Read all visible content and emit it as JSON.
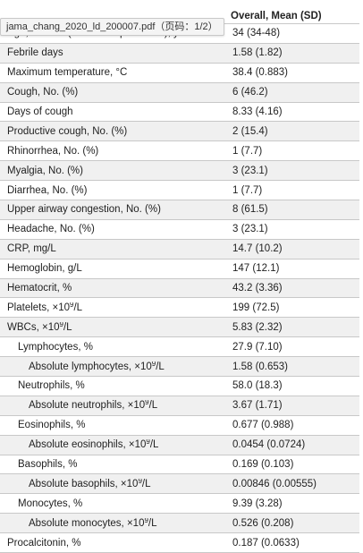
{
  "tooltip": "jama_chang_2020_ld_200007.pdf（页码：1/2）",
  "header": {
    "column": "Overall, Mean (SD)"
  },
  "rows": [
    {
      "label": "Age, median (25th–75th percentile), y",
      "value": "34 (34-48)",
      "indent": 0
    },
    {
      "label": "Febrile days",
      "value": "1.58 (1.82)",
      "indent": 0
    },
    {
      "label": "Maximum temperature, °C",
      "value": "38.4 (0.883)",
      "indent": 0
    },
    {
      "label": "Cough, No. (%)",
      "value": "6 (46.2)",
      "indent": 0
    },
    {
      "label": "Days of cough",
      "value": "8.33 (4.16)",
      "indent": 0
    },
    {
      "label": "Productive cough, No. (%)",
      "value": "2 (15.4)",
      "indent": 0
    },
    {
      "label": "Rhinorrhea, No. (%)",
      "value": "1 (7.7)",
      "indent": 0
    },
    {
      "label": "Myalgia, No. (%)",
      "value": "3 (23.1)",
      "indent": 0
    },
    {
      "label": "Diarrhea, No. (%)",
      "value": "1 (7.7)",
      "indent": 0
    },
    {
      "label": "Upper airway congestion, No. (%)",
      "value": "8 (61.5)",
      "indent": 0
    },
    {
      "label": "Headache, No. (%)",
      "value": "3 (23.1)",
      "indent": 0
    },
    {
      "label": "CRP, mg/L",
      "value": "14.7 (10.2)",
      "indent": 0
    },
    {
      "label": "Hemoglobin, g/L",
      "value": "147 (12.1)",
      "indent": 0
    },
    {
      "label": "Hematocrit, %",
      "value": "43.2 (3.36)",
      "indent": 0
    },
    {
      "label": "Platelets, ×10⁹/L",
      "value": "199 (72.5)",
      "indent": 0
    },
    {
      "label": "WBCs, ×10⁹/L",
      "value": "5.83 (2.32)",
      "indent": 0
    },
    {
      "label": "Lymphocytes, %",
      "value": "27.9 (7.10)",
      "indent": 1
    },
    {
      "label": "Absolute lymphocytes, ×10⁹/L",
      "value": "1.58 (0.653)",
      "indent": 2
    },
    {
      "label": "Neutrophils, %",
      "value": "58.0 (18.3)",
      "indent": 1
    },
    {
      "label": "Absolute neutrophils, ×10⁹/L",
      "value": "3.67 (1.71)",
      "indent": 2
    },
    {
      "label": "Eosinophils, %",
      "value": "0.677 (0.988)",
      "indent": 1
    },
    {
      "label": "Absolute eosinophils, ×10⁹/L",
      "value": "0.0454 (0.0724)",
      "indent": 2
    },
    {
      "label": "Basophils, %",
      "value": "0.169 (0.103)",
      "indent": 1
    },
    {
      "label": "Absolute basophils, ×10⁹/L",
      "value": "0.00846 (0.00555)",
      "indent": 2
    },
    {
      "label": "Monocytes, %",
      "value": "9.39 (3.28)",
      "indent": 1
    },
    {
      "label": "Absolute monocytes, ×10⁹/L",
      "value": "0.526 (0.208)",
      "indent": 2
    },
    {
      "label": "Procalcitonin, %",
      "value": "0.187 (0.0633)",
      "indent": 0
    }
  ]
}
